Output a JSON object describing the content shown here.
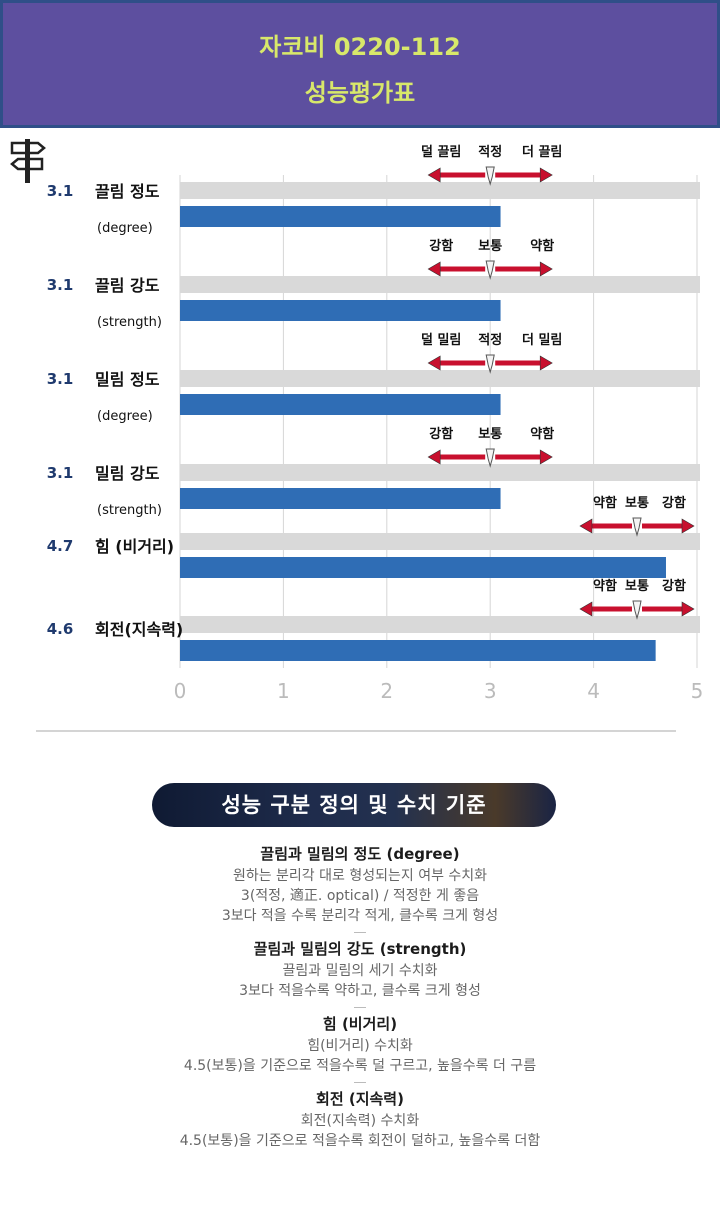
{
  "header": {
    "title": "자코비 0220-112",
    "subtitle": "성능평가표"
  },
  "chart_data": {
    "type": "bar",
    "orientation": "horizontal",
    "xlim": [
      0,
      5
    ],
    "ticks": [
      "0",
      "1",
      "2",
      "3",
      "4",
      "5"
    ],
    "grid": true,
    "categories": [
      {
        "label": "끌림 정도",
        "sublabel": "(degree)",
        "value": 3.1,
        "value_label": "3.1",
        "scale": [
          "덜 끌림",
          "적정",
          "더 끌림"
        ]
      },
      {
        "label": "끌림 강도",
        "sublabel": "(strength)",
        "value": 3.1,
        "value_label": "3.1",
        "scale": [
          "강함",
          "보통",
          "약함"
        ]
      },
      {
        "label": "밀림 정도",
        "sublabel": "(degree)",
        "value": 3.1,
        "value_label": "3.1",
        "scale": [
          "덜 밀림",
          "적정",
          "더 밀림"
        ]
      },
      {
        "label": "밀림 강도",
        "sublabel": "(strength)",
        "value": 3.1,
        "value_label": "3.1",
        "scale": [
          "강함",
          "보통",
          "약함"
        ]
      },
      {
        "label": "힘 (비거리)",
        "sublabel": "",
        "value": 4.7,
        "value_label": "4.7",
        "scale": [
          "약함",
          "보통",
          "강함"
        ]
      },
      {
        "label": "회전(지속력)",
        "sublabel": "",
        "value": 4.6,
        "value_label": "4.6",
        "scale": [
          "약함",
          "보통",
          "강함"
        ]
      }
    ],
    "colors": {
      "bar": "#2f6db5",
      "track": "#d9d9d9",
      "arrow": "#c8102e",
      "value": "#1f3a6e"
    }
  },
  "definitions": {
    "heading": "성능 구분 정의 및 수치 기준",
    "sections": [
      {
        "title": "끌림과 밀림의 정도 (degree)",
        "lines": [
          "원하는 분리각 대로 형성되는지 여부 수치화",
          "3(적정, 適正. optical) / 적정한 게 좋음",
          "3보다 적을 수록 분리각 적게, 클수록 크게 형성"
        ]
      },
      {
        "title": "끌림과 밀림의 강도 (strength)",
        "lines": [
          "끌림과 밀림의 세기 수치화",
          "3보다 적을수록 약하고, 클수록 크게 형성"
        ]
      },
      {
        "title": "힘 (비거리)",
        "lines": [
          "힘(비거리) 수치화",
          "4.5(보통)을 기준으로 적을수록 덜 구르고, 높을수록 더 구름"
        ]
      },
      {
        "title": "회전 (지속력)",
        "lines": [
          "회전(지속력) 수치화",
          "4.5(보통)을 기준으로 적을수록 회전이 덜하고, 높을수록 더함"
        ]
      }
    ]
  }
}
